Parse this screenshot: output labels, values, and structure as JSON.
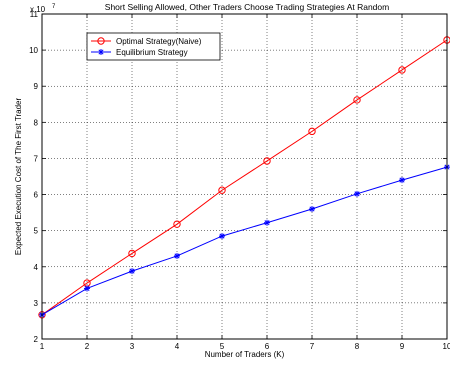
{
  "chart_data": {
    "type": "line",
    "title": "Short Selling Allowed, Other Traders Choose Trading Strategies At Random",
    "xlabel": "Number of Traders (K)",
    "ylabel": "Expected Execution Cost of The First Trader",
    "y_multiplier_label": "x 10",
    "y_multiplier_exponent": "7",
    "x": [
      1,
      2,
      3,
      4,
      5,
      6,
      7,
      8,
      9,
      10
    ],
    "xlim": [
      1,
      10
    ],
    "ylim": [
      2,
      11
    ],
    "x_ticks": [
      "1",
      "2",
      "3",
      "4",
      "5",
      "6",
      "7",
      "8",
      "9",
      "10"
    ],
    "y_ticks": [
      "2",
      "3",
      "4",
      "5",
      "6",
      "7",
      "8",
      "9",
      "10",
      "11"
    ],
    "grid": true,
    "legend_position": "top-left",
    "series": [
      {
        "name": "Optimal Strategy(Naive)",
        "color": "#ff0000",
        "marker": "circle",
        "values": [
          2.67,
          3.55,
          4.37,
          5.18,
          6.12,
          6.93,
          7.75,
          8.62,
          9.45,
          10.28
        ]
      },
      {
        "name": "Equilibrium Strategy",
        "color": "#0000ff",
        "marker": "star",
        "values": [
          2.67,
          3.4,
          3.88,
          4.3,
          4.85,
          5.22,
          5.6,
          6.02,
          6.4,
          6.76
        ]
      }
    ]
  }
}
